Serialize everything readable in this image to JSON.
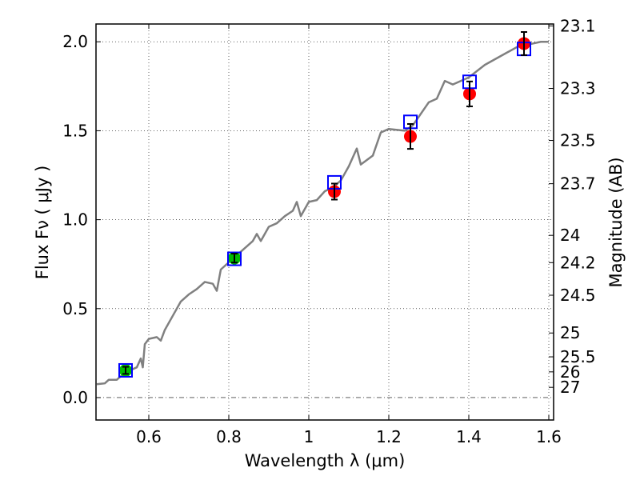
{
  "chart_data": {
    "type": "scatter",
    "xlabel": "Wavelength  λ (μm)",
    "ylabel": "Flux  Fν  ( μJy )",
    "y2label": "Magnitude (AB)",
    "xlim": [
      0.468,
      1.612
    ],
    "ylim": [
      -0.126,
      2.1
    ],
    "grid": true,
    "x_ticks": [
      0.6,
      0.8,
      1.0,
      1.2,
      1.4,
      1.6
    ],
    "x_tick_labels": [
      "0.6",
      "0.8",
      "1",
      "1.2",
      "1.4",
      "1.6"
    ],
    "y_ticks": [
      0.0,
      0.5,
      1.0,
      1.5,
      2.0
    ],
    "y_tick_labels": [
      "0.0",
      "0.5",
      "1.0",
      "1.5",
      "2.0"
    ],
    "y2_ticks": [
      23.1,
      23.3,
      23.5,
      23.7,
      24,
      24.2,
      24.5,
      25,
      25.5,
      26,
      27
    ],
    "y2_tick_labels": [
      "23.1",
      "23.3",
      "23.5",
      "23.7",
      "24",
      "24.2",
      "24.5",
      "25",
      "25.5",
      "26",
      "27"
    ],
    "colors": {
      "spectrum": "#808080",
      "model_box": "#0000ff",
      "detected": "#00bb00",
      "measured": "#ff0000",
      "errorbar": "#000000"
    },
    "spectrum": {
      "x": [
        0.47,
        0.49,
        0.5,
        0.52,
        0.53,
        0.55,
        0.57,
        0.58,
        0.585,
        0.59,
        0.6,
        0.62,
        0.63,
        0.64,
        0.66,
        0.68,
        0.7,
        0.72,
        0.74,
        0.76,
        0.77,
        0.78,
        0.8,
        0.82,
        0.84,
        0.86,
        0.87,
        0.88,
        0.9,
        0.92,
        0.94,
        0.96,
        0.97,
        0.98,
        1.0,
        1.02,
        1.04,
        1.06,
        1.08,
        1.1,
        1.12,
        1.13,
        1.16,
        1.18,
        1.2,
        1.24,
        1.26,
        1.3,
        1.32,
        1.34,
        1.36,
        1.4,
        1.44,
        1.48,
        1.52,
        1.56,
        1.58,
        1.6
      ],
      "y": [
        0.075,
        0.08,
        0.1,
        0.1,
        0.12,
        0.15,
        0.17,
        0.22,
        0.17,
        0.3,
        0.33,
        0.34,
        0.32,
        0.38,
        0.46,
        0.54,
        0.58,
        0.61,
        0.65,
        0.64,
        0.6,
        0.72,
        0.76,
        0.8,
        0.84,
        0.88,
        0.92,
        0.88,
        0.96,
        0.98,
        1.02,
        1.05,
        1.1,
        1.02,
        1.1,
        1.11,
        1.16,
        1.18,
        1.22,
        1.3,
        1.4,
        1.31,
        1.36,
        1.49,
        1.51,
        1.5,
        1.53,
        1.66,
        1.68,
        1.78,
        1.76,
        1.8,
        1.87,
        1.92,
        1.97,
        1.99,
        2.0,
        2.0
      ]
    },
    "model_points": {
      "x": [
        0.542,
        0.814,
        1.064,
        1.254,
        1.402,
        1.538
      ],
      "y": [
        0.153,
        0.78,
        1.21,
        1.55,
        1.775,
        1.96
      ]
    },
    "observed_points": {
      "x": [
        0.542,
        0.814,
        1.064,
        1.254,
        1.402,
        1.538
      ],
      "y": [
        0.153,
        0.784,
        1.158,
        1.468,
        1.707,
        1.99
      ],
      "err": [
        0.02,
        0.025,
        0.045,
        0.07,
        0.07,
        0.065
      ],
      "kind": [
        "detected",
        "detected",
        "measured",
        "measured",
        "measured",
        "measured"
      ]
    }
  }
}
